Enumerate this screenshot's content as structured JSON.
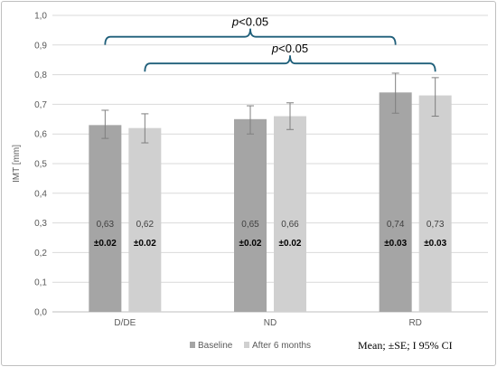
{
  "chart_data": {
    "type": "bar",
    "ylabel": "IMT [mm]",
    "ylim": [
      0,
      1.0
    ],
    "yticks": [
      "0,0",
      "0,1",
      "0,2",
      "0,3",
      "0,4",
      "0,5",
      "0,6",
      "0,7",
      "0,8",
      "0,9",
      "1,0"
    ],
    "categories": [
      "D/DE",
      "ND",
      "RD"
    ],
    "series": [
      {
        "name": "Baseline",
        "color": "#a5a5a5",
        "values": [
          0.63,
          0.65,
          0.74
        ],
        "value_labels": [
          "0,63",
          "0,65",
          "0,74"
        ],
        "se_labels": [
          "±0.02",
          "±0.02",
          "±0.03"
        ],
        "ci_low": [
          0.585,
          0.6,
          0.67
        ],
        "ci_high": [
          0.68,
          0.695,
          0.805
        ]
      },
      {
        "name": "After 6 months",
        "color": "#d0d0d0",
        "values": [
          0.62,
          0.66,
          0.73
        ],
        "value_labels": [
          "0,62",
          "0,66",
          "0,73"
        ],
        "se_labels": [
          "±0.02",
          "±0.02",
          "±0.03"
        ],
        "ci_low": [
          0.57,
          0.615,
          0.66
        ],
        "ci_high": [
          0.668,
          0.705,
          0.79
        ]
      }
    ],
    "annotations": [
      {
        "text_italic": "p",
        "text": "<0.05",
        "from": "D/DE Baseline",
        "to": "RD Baseline",
        "level": 0.94
      },
      {
        "text_italic": "p",
        "text": "<0.05",
        "from": "D/DE After 6 months",
        "to": "RD After 6 months",
        "level": 0.85
      }
    ],
    "legend_position": "bottom",
    "note": "Mean; ±SE; Ι 95% CI",
    "grid": true
  }
}
